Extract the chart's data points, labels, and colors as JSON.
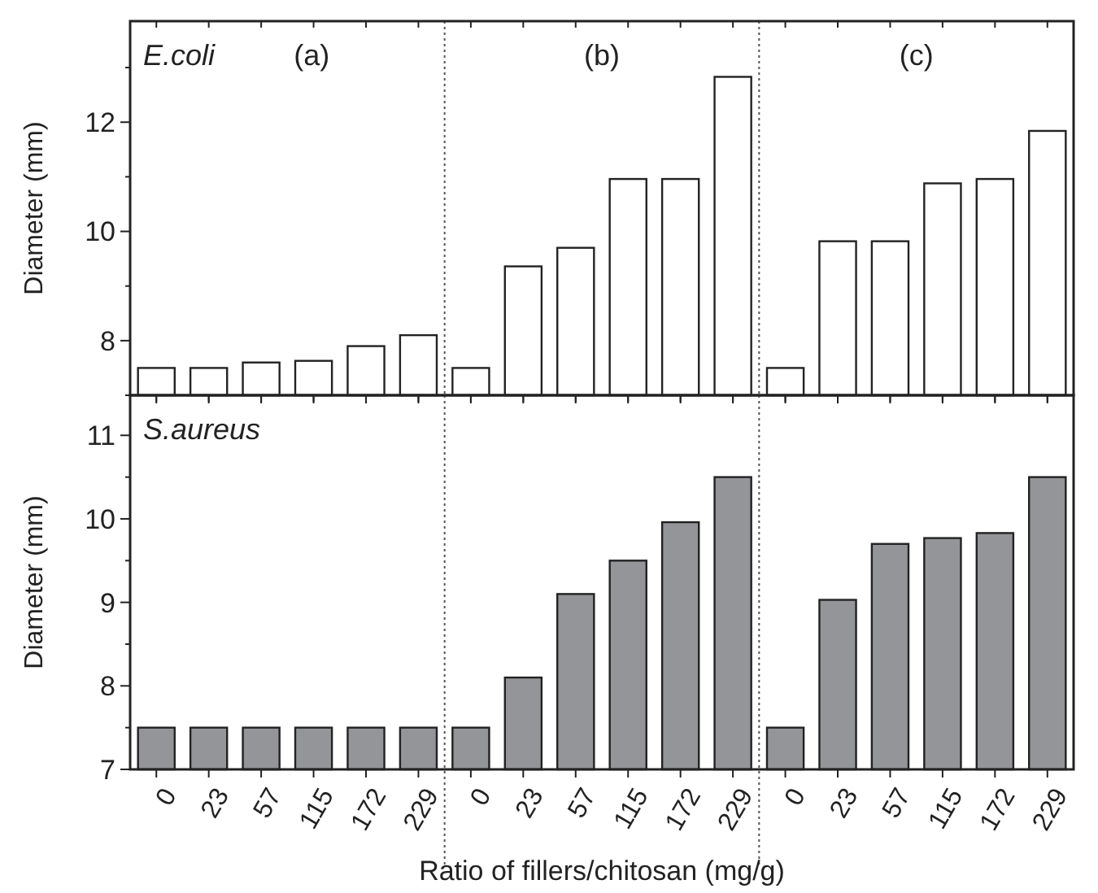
{
  "chart_data": [
    {
      "type": "bar",
      "ylabel": "Diameter (mm)",
      "annotations": [
        "E.coli",
        "(a)",
        "(b)",
        "(c)"
      ],
      "categories": [
        "0",
        "23",
        "57",
        "115",
        "172",
        "229",
        "0",
        "23",
        "57",
        "115",
        "172",
        "229",
        "0",
        "23",
        "57",
        "115",
        "172",
        "229"
      ],
      "series": [
        {
          "color": "#ffffff",
          "values": [
            7.5,
            7.5,
            7.6,
            7.63,
            7.9,
            8.1,
            7.5,
            9.36,
            9.7,
            10.96,
            10.96,
            12.83,
            7.5,
            9.82,
            9.82,
            10.88,
            10.96,
            11.84
          ]
        }
      ],
      "ylim": [
        7,
        13.85
      ],
      "yticks": [
        {
          "value": 7,
          "label": null
        },
        8,
        {
          "value": 9,
          "label": null
        },
        10,
        {
          "value": 11,
          "label": null
        },
        12,
        {
          "value": 13,
          "label": null
        }
      ],
      "tick_labels": "y"
    },
    {
      "type": "bar",
      "ylabel": "Diameter (mm)",
      "xlabel": "Ratio of fillers/chitosan (mg/g)",
      "annotations": [
        "S.aureus"
      ],
      "categories": [
        "0",
        "23",
        "57",
        "115",
        "172",
        "229",
        "0",
        "23",
        "57",
        "115",
        "172",
        "229",
        "0",
        "23",
        "57",
        "115",
        "172",
        "229"
      ],
      "series": [
        {
          "color": "#939598",
          "values": [
            7.5,
            7.5,
            7.5,
            7.5,
            7.5,
            7.5,
            7.5,
            8.1,
            9.1,
            9.5,
            9.96,
            10.5,
            7.5,
            9.03,
            9.7,
            9.77,
            9.83,
            10.5
          ]
        }
      ],
      "ylim": [
        7,
        11.48
      ],
      "yticks": [
        7,
        {
          "value": 7.5,
          "label": null
        },
        8,
        {
          "value": 8.5,
          "label": null
        },
        9,
        {
          "value": 9.5,
          "label": null
        },
        10,
        {
          "value": 10.5,
          "label": null
        },
        11
      ]
    }
  ]
}
